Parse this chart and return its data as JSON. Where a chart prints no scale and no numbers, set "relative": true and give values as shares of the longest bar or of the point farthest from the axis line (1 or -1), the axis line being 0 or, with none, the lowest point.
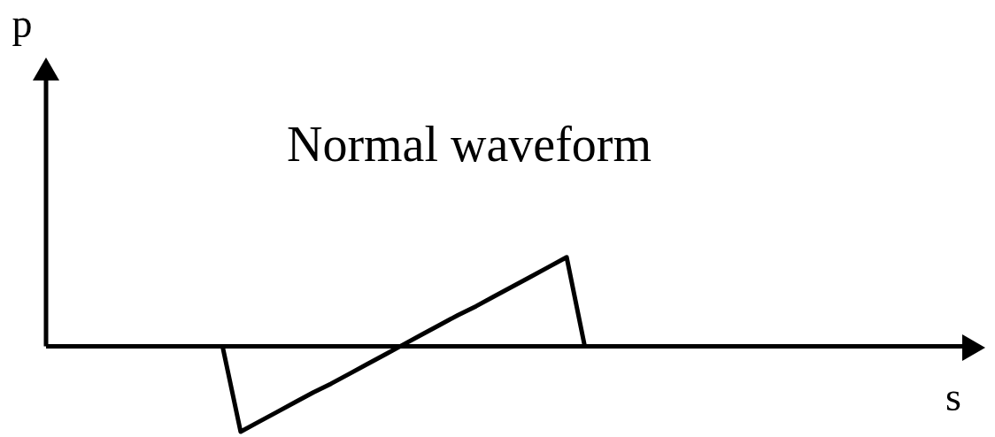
{
  "chart_data": {
    "type": "line",
    "title": "Normal waveform",
    "xlabel": "s",
    "annotations": [
      "p"
    ],
    "relative": true,
    "categories": [
      null,
      null,
      null,
      null,
      null,
      null,
      null,
      null,
      null,
      null,
      null,
      null,
      null,
      null,
      null,
      null,
      null,
      null,
      null,
      null,
      null,
      null,
      null,
      null,
      null,
      null,
      null,
      null,
      null,
      null,
      null,
      null,
      null,
      null,
      null,
      null,
      null,
      null,
      null,
      null,
      null,
      null,
      null,
      null,
      null,
      null,
      null,
      null,
      null,
      null
    ],
    "series": [
      {
        "color": "#000000",
        "values": [
          null,
          null,
          null,
          null,
          null,
          null,
          null,
          null,
          null,
          0,
          -0.96,
          -0.85,
          -0.74,
          -0.63,
          -0.52,
          -0.42,
          -0.31,
          -0.2,
          -0.09,
          0.02,
          0.13,
          0.24,
          0.35,
          0.45,
          0.56,
          0.67,
          0.78,
          0.89,
          1,
          0,
          null,
          null,
          null,
          null,
          null,
          null,
          null,
          null,
          null,
          null,
          null,
          null,
          null,
          null,
          null,
          null,
          null,
          null,
          null,
          null
        ]
      }
    ]
  }
}
